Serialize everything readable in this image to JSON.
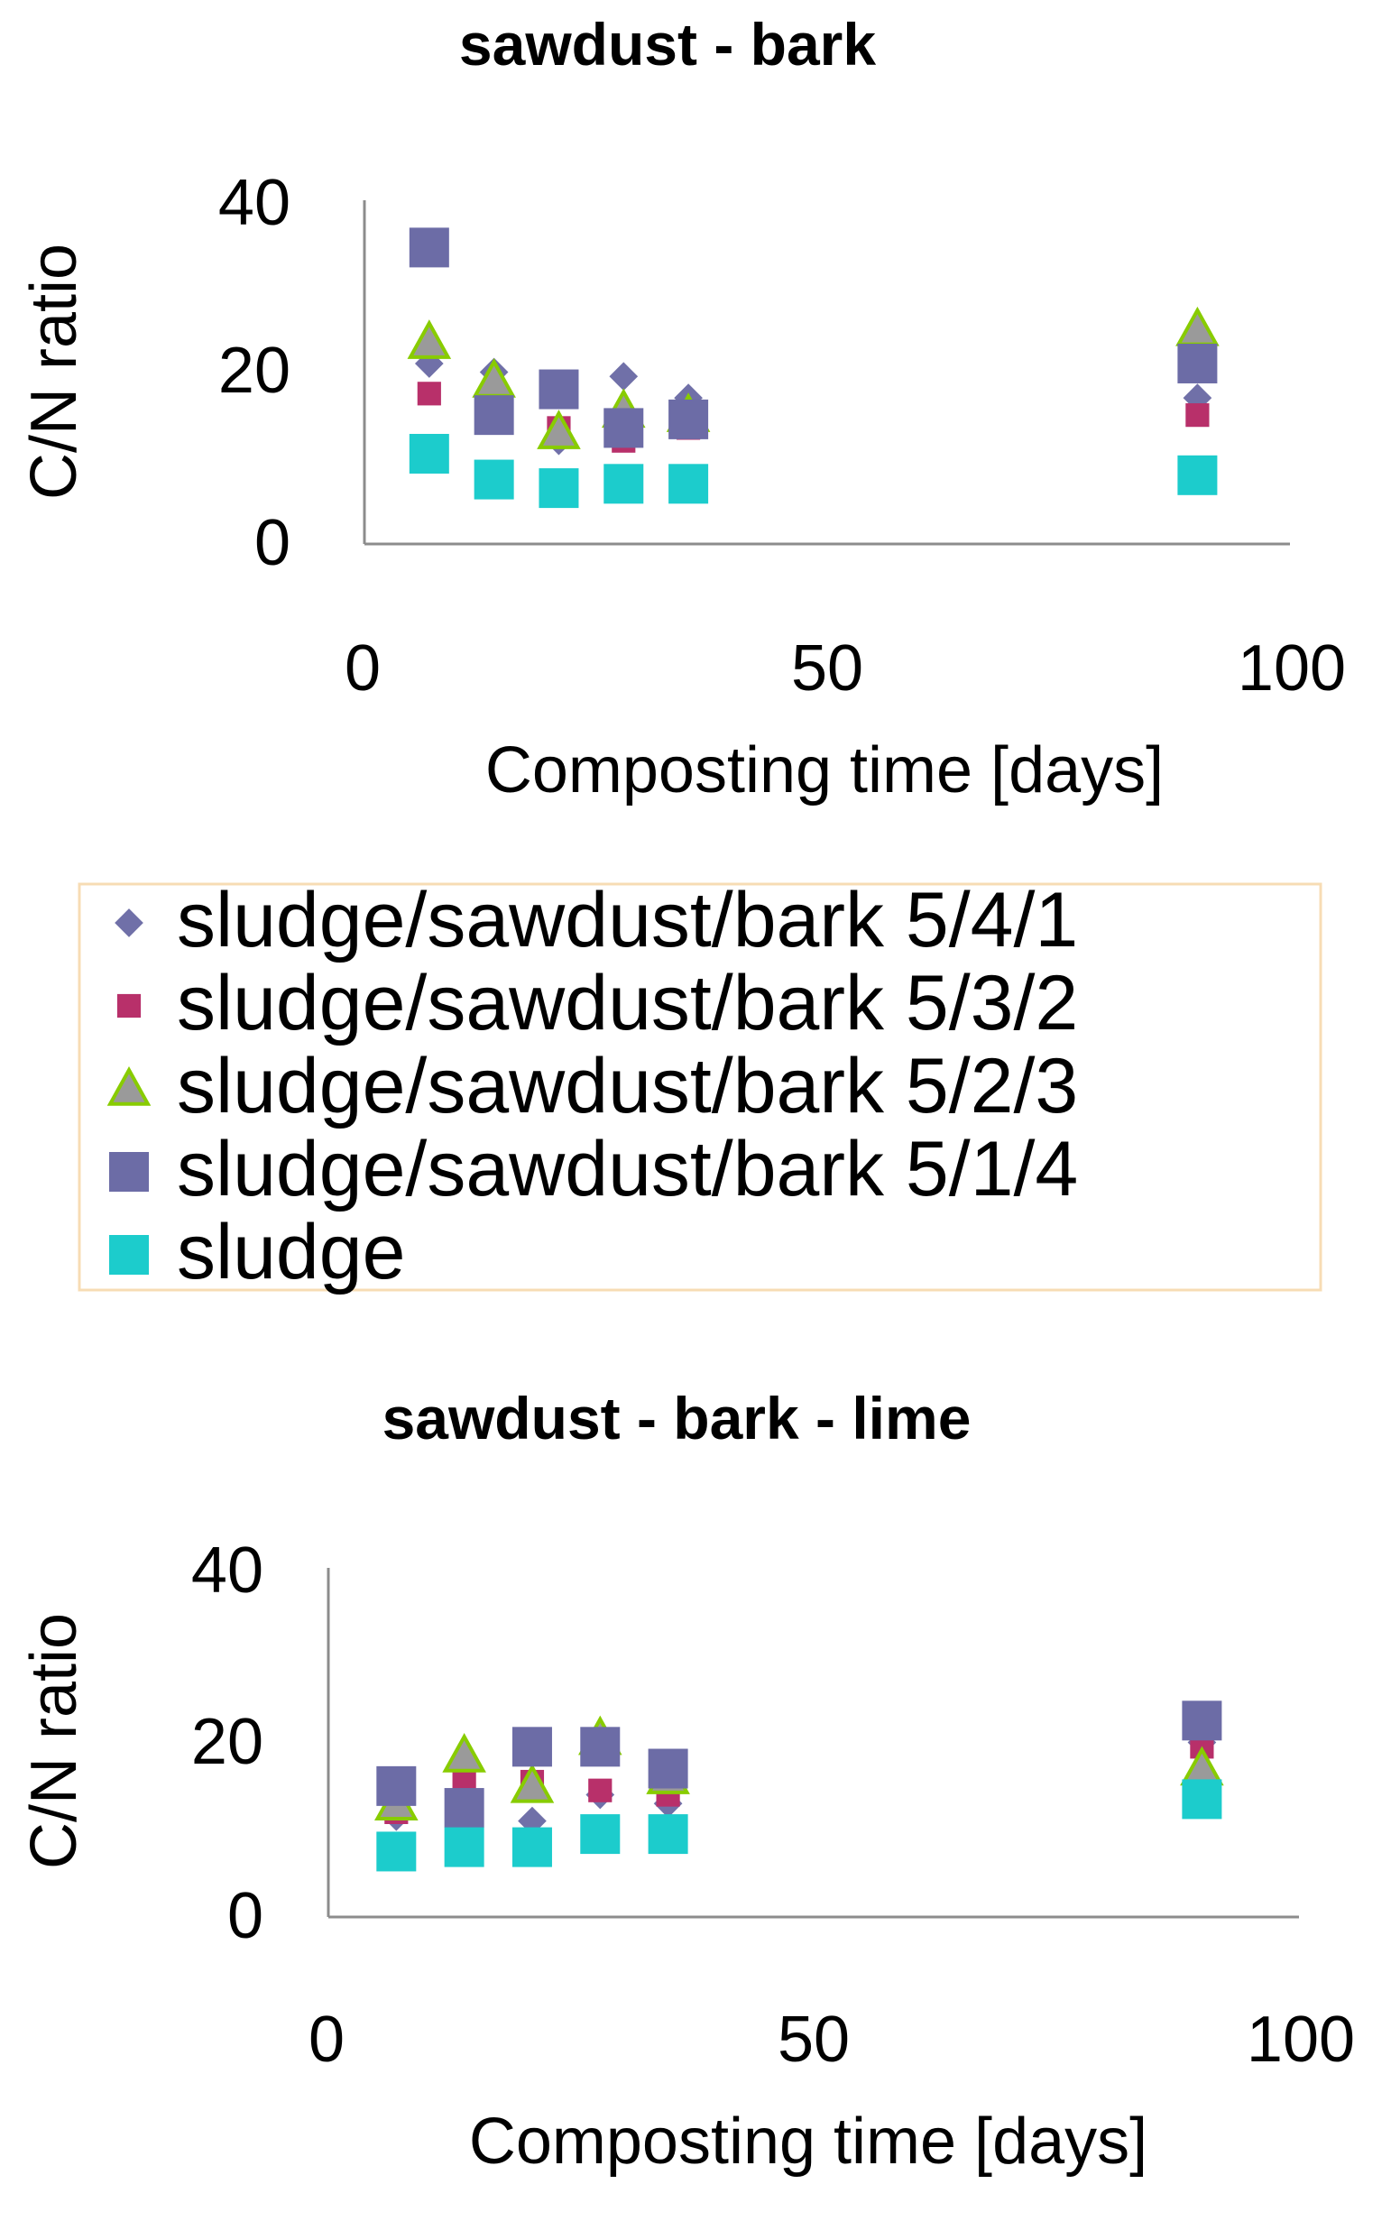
{
  "legend": {
    "entries": [
      {
        "label": "sludge/sawdust/bark 5/4/1",
        "marker": "diamond",
        "color": "#7070a8"
      },
      {
        "label": "sludge/sawdust/bark 5/3/2",
        "marker": "small-square",
        "color": "#b8306a"
      },
      {
        "label": "sludge/sawdust/bark 5/2/3",
        "marker": "triangle",
        "color": "#9a9a9a",
        "stroke": "#88cc00"
      },
      {
        "label": "sludge/sawdust/bark 5/1/4",
        "marker": "square",
        "color": "#6c6ca6"
      },
      {
        "label": "sludge",
        "marker": "square",
        "color": "#1ccccc"
      }
    ]
  },
  "chart_data": [
    {
      "type": "scatter",
      "title": "sawdust - bark",
      "xlabel": "Composting time [days]",
      "ylabel": "C/N ratio",
      "xlim": [
        0,
        100
      ],
      "ylim": [
        0,
        40
      ],
      "xticks": [
        "0",
        "50",
        "100"
      ],
      "yticks": [
        "0",
        "20",
        "40"
      ],
      "grid": false,
      "series": [
        {
          "name": "sludge/sawdust/bark 5/4/1",
          "points": [
            [
              7,
              21
            ],
            [
              14,
              20
            ],
            [
              21,
              12
            ],
            [
              28,
              19.5
            ],
            [
              35,
              17
            ],
            [
              90,
              17
            ]
          ]
        },
        {
          "name": "sludge/sawdust/bark 5/3/2",
          "points": [
            [
              7,
              17.5
            ],
            [
              14,
              15
            ],
            [
              21,
              13.5
            ],
            [
              28,
              12
            ],
            [
              35,
              13.5
            ],
            [
              90,
              15
            ]
          ]
        },
        {
          "name": "sludge/sawdust/bark 5/2/3",
          "points": [
            [
              7,
              23.5
            ],
            [
              14,
              19
            ],
            [
              21,
              13
            ],
            [
              28,
              15.5
            ],
            [
              35,
              15
            ],
            [
              90,
              25
            ]
          ]
        },
        {
          "name": "sludge/sawdust/bark 5/1/4",
          "points": [
            [
              7,
              34.5
            ],
            [
              14,
              15
            ],
            [
              21,
              18
            ],
            [
              28,
              13.5
            ],
            [
              35,
              14.5
            ],
            [
              90,
              21
            ]
          ]
        },
        {
          "name": "sludge",
          "points": [
            [
              7,
              10.5
            ],
            [
              14,
              7.5
            ],
            [
              21,
              6.5
            ],
            [
              28,
              7
            ],
            [
              35,
              7
            ],
            [
              90,
              8
            ]
          ]
        }
      ]
    },
    {
      "type": "scatter",
      "title": "sawdust - bark - lime",
      "xlabel": "Composting time [days]",
      "ylabel": "C/N ratio",
      "xlim": [
        0,
        100
      ],
      "ylim": [
        0,
        40
      ],
      "xticks": [
        "0",
        "50",
        "100"
      ],
      "yticks": [
        "0",
        "20",
        "40"
      ],
      "grid": false,
      "series": [
        {
          "name": "sludge/sawdust/bark 5/4/1",
          "points": [
            [
              7,
              11.5
            ],
            [
              14,
              12
            ],
            [
              21,
              11
            ],
            [
              28,
              14
            ],
            [
              35,
              13
            ],
            [
              90,
              20
            ]
          ]
        },
        {
          "name": "sludge/sawdust/bark 5/3/2",
          "points": [
            [
              7,
              12
            ],
            [
              14,
              15.5
            ],
            [
              21,
              15.5
            ],
            [
              28,
              14.5
            ],
            [
              35,
              14
            ],
            [
              90,
              19.5
            ]
          ]
        },
        {
          "name": "sludge/sawdust/bark 5/2/3",
          "points": [
            [
              7,
              13
            ],
            [
              14,
              18.5
            ],
            [
              21,
              15
            ],
            [
              28,
              20.5
            ],
            [
              35,
              16
            ],
            [
              90,
              17
            ]
          ]
        },
        {
          "name": "sludge/sawdust/bark 5/1/4",
          "points": [
            [
              7,
              15
            ],
            [
              14,
              12.5
            ],
            [
              21,
              19.5
            ],
            [
              28,
              19.5
            ],
            [
              35,
              17
            ],
            [
              90,
              22.5
            ]
          ]
        },
        {
          "name": "sludge",
          "points": [
            [
              7,
              7.5
            ],
            [
              14,
              8
            ],
            [
              21,
              8
            ],
            [
              28,
              9.5
            ],
            [
              35,
              9.5
            ],
            [
              90,
              13.5
            ]
          ]
        }
      ]
    }
  ]
}
